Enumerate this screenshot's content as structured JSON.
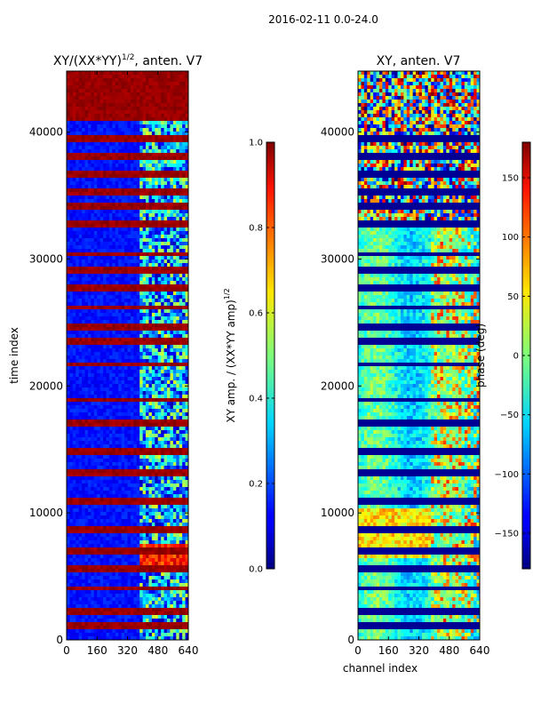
{
  "figure_title": "2016-02-11 0.0-24.0",
  "chart_data": [
    {
      "type": "heatmap",
      "title": "XY/(XX*YY)^1/2, anten. V7",
      "title_main": "XY/(XX*YY)",
      "title_sup": "1/2",
      "title_tail": ", anten. V7",
      "xlabel": "",
      "ylabel": "time index",
      "xlim": [
        0,
        640
      ],
      "ylim": [
        0,
        44800
      ],
      "x_ticks": [
        0,
        160,
        320,
        480,
        640
      ],
      "y_ticks": [
        0,
        10000,
        20000,
        30000,
        40000
      ],
      "colorbar": {
        "label": "XY amp. / (XX*YY amp)",
        "label_sup": "1/2",
        "range": [
          0.0,
          1.0
        ],
        "ticks": [
          "0.0",
          "0.2",
          "0.4",
          "0.6",
          "0.8",
          "1.0"
        ],
        "tick_values": [
          0.0,
          0.2,
          0.4,
          0.6,
          0.8,
          1.0
        ]
      },
      "colormap": "jet",
      "description_values": {
        "baseline_amplitude": 0.1,
        "high_channel_region": [
          380,
          640
        ],
        "saturated_time_band": [
          41000,
          44800
        ],
        "flagged_rows": [
          1200,
          2300,
          4100,
          5600,
          7000,
          8600,
          11000,
          13100,
          14900,
          17000,
          18900,
          21700,
          23500,
          24600,
          26200,
          27800,
          29100,
          30400,
          32800,
          34200,
          35300,
          36700,
          38100,
          39400
        ]
      }
    },
    {
      "type": "heatmap",
      "title": "XY, anten. V7",
      "xlabel": "channel index",
      "ylabel": "",
      "xlim": [
        0,
        640
      ],
      "ylim": [
        0,
        44800
      ],
      "x_ticks": [
        0,
        160,
        320,
        480,
        640
      ],
      "y_ticks": [
        0,
        10000,
        20000,
        30000,
        40000
      ],
      "colorbar": {
        "label": "phase (deg)",
        "range": [
          -180,
          180
        ],
        "ticks": [
          "−150",
          "−100",
          "−50",
          "0",
          "50",
          "100",
          "150"
        ],
        "tick_values": [
          -150,
          -100,
          -50,
          0,
          50,
          100,
          150
        ]
      },
      "colormap": "jet",
      "description_values": {
        "dominant_phase_deg": -40,
        "noisy_time_band": [
          33000,
          44800
        ],
        "flagged_rows": [
          1200,
          2300,
          4100,
          5600,
          7000,
          8600,
          11000,
          13100,
          14900,
          17000,
          18900,
          21700,
          23500,
          24600,
          26200,
          27800,
          29100,
          30400,
          32800,
          34200,
          35300,
          36700,
          38100,
          39400
        ]
      }
    }
  ]
}
